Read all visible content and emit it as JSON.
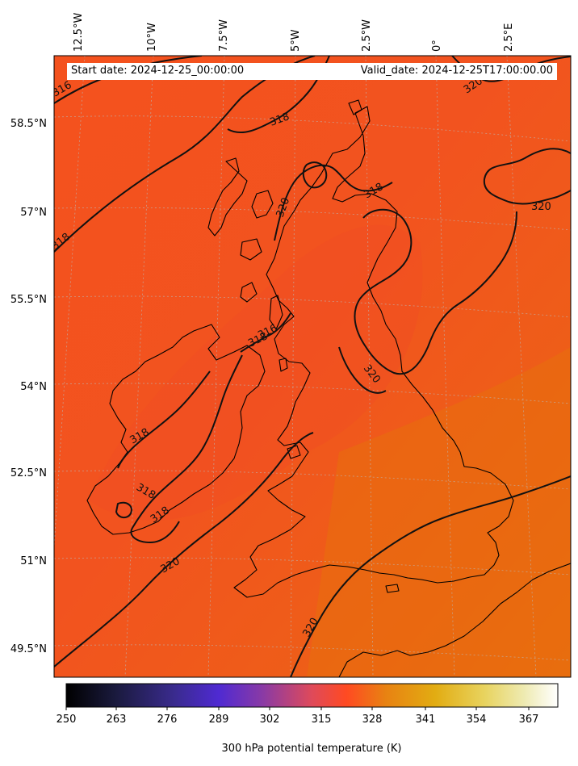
{
  "info": {
    "start_date": "Start date: 2024-12-25_00:00:00",
    "valid_date": "Valid_date: 2024-12-25T17:00:00.00"
  },
  "map": {
    "longitude_labels": [
      "12.5°W",
      "10°W",
      "7.5°W",
      "5°W",
      "2.5°W",
      "0°",
      "2.5°E"
    ],
    "latitude_labels": [
      "58.5°N",
      "57°N",
      "55.5°N",
      "54°N",
      "52.5°N",
      "51°N",
      "49.5°N"
    ],
    "contour_labels": [
      "316",
      "318",
      "320",
      "318",
      "320",
      "318",
      "320",
      "318",
      "316",
      "320",
      "318",
      "318",
      "318",
      "320",
      "320",
      "320"
    ],
    "field": "300 hPa potential temperature (K)",
    "colormap": "CMRmap",
    "colors": {
      "field_west": "#f4521e",
      "field_land": "#f34d22",
      "field_east": "#ea6a10",
      "contour": "#111111",
      "coastline": "#000000",
      "gridline": "#b9b9b9"
    }
  },
  "colorbar": {
    "ticks": [
      "250",
      "263",
      "276",
      "289",
      "302",
      "315",
      "328",
      "341",
      "354",
      "367"
    ],
    "min": 250,
    "max": 377,
    "label": "300 hPa potential temperature (K)"
  }
}
